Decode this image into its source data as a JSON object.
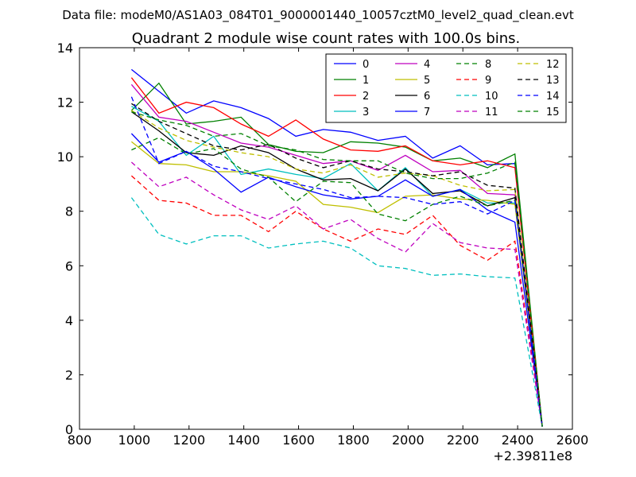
{
  "figure": {
    "suptitle": "Data file: modeM0/AS1A03_084T01_9000001440_10057cztM0_level2_quad_clean.evt"
  },
  "chart_data": {
    "type": "line",
    "title": "Quadrant 2 module wise count rates with 100.0s bins.",
    "xlabel": "",
    "ylabel": "",
    "x_offset_label": "+2.39811e8",
    "xlim": [
      800,
      2600
    ],
    "ylim": [
      0,
      14
    ],
    "x_ticks": [
      800,
      1000,
      1200,
      1400,
      1600,
      1800,
      2000,
      2200,
      2400,
      2600
    ],
    "y_ticks": [
      0,
      2,
      4,
      6,
      8,
      10,
      12,
      14
    ],
    "grid": false,
    "legend_position": "top-right",
    "legend_columns": 4,
    "x": [
      990,
      1090,
      1190,
      1290,
      1390,
      1490,
      1590,
      1690,
      1790,
      1890,
      1990,
      2090,
      2190,
      2290,
      2390,
      2490
    ],
    "series": [
      {
        "name": "0",
        "color": "#0000ff",
        "dash": "solid",
        "values": [
          13.2,
          12.4,
          11.6,
          12.05,
          11.8,
          11.4,
          10.75,
          11.0,
          10.9,
          10.6,
          10.75,
          9.95,
          10.4,
          9.7,
          9.75,
          0.1
        ]
      },
      {
        "name": "1",
        "color": "#008000",
        "dash": "solid",
        "values": [
          11.7,
          12.7,
          11.2,
          11.3,
          11.45,
          10.45,
          10.2,
          10.15,
          10.55,
          10.5,
          10.35,
          9.85,
          9.95,
          9.6,
          10.1,
          0.1
        ]
      },
      {
        "name": "2",
        "color": "#ff0000",
        "dash": "solid",
        "values": [
          12.9,
          11.6,
          12.0,
          11.8,
          11.2,
          10.75,
          11.35,
          10.65,
          10.25,
          10.2,
          10.4,
          9.85,
          9.7,
          9.85,
          9.6,
          0.1
        ]
      },
      {
        "name": "3",
        "color": "#00bfbf",
        "dash": "solid",
        "values": [
          11.85,
          11.3,
          10.05,
          10.75,
          9.35,
          9.55,
          9.35,
          9.2,
          9.75,
          8.75,
          9.6,
          8.55,
          8.8,
          8.3,
          8.3,
          0.1
        ]
      },
      {
        "name": "4",
        "color": "#bf00bf",
        "dash": "solid",
        "values": [
          12.65,
          11.45,
          11.3,
          10.9,
          10.5,
          10.35,
          10.05,
          9.75,
          9.85,
          9.5,
          10.05,
          9.45,
          9.5,
          8.65,
          8.6,
          0.1
        ]
      },
      {
        "name": "5",
        "color": "#bfbf00",
        "dash": "solid",
        "values": [
          10.55,
          9.75,
          9.7,
          9.45,
          9.45,
          9.3,
          9.1,
          8.25,
          8.15,
          7.95,
          8.55,
          8.6,
          8.45,
          8.4,
          8.25,
          0.1
        ]
      },
      {
        "name": "6",
        "color": "#000000",
        "dash": "solid",
        "values": [
          11.65,
          10.95,
          10.15,
          10.05,
          10.4,
          10.15,
          9.55,
          9.15,
          9.2,
          8.75,
          9.55,
          8.65,
          8.75,
          8.2,
          8.5,
          0.1
        ]
      },
      {
        "name": "7",
        "color": "#0000ff",
        "dash": "solid",
        "values": [
          10.85,
          9.8,
          10.2,
          9.55,
          8.7,
          9.25,
          8.9,
          8.6,
          8.45,
          8.55,
          9.15,
          8.55,
          8.8,
          8.05,
          7.6,
          0.1
        ]
      },
      {
        "name": "8",
        "color": "#008000",
        "dash": "dashed",
        "values": [
          10.25,
          10.7,
          10.1,
          10.3,
          9.55,
          9.25,
          8.35,
          9.1,
          9.05,
          7.9,
          7.65,
          8.25,
          8.55,
          8.2,
          8.4,
          0.1
        ]
      },
      {
        "name": "9",
        "color": "#ff0000",
        "dash": "dashed",
        "values": [
          9.3,
          8.4,
          8.3,
          7.85,
          7.85,
          7.25,
          8.0,
          7.35,
          6.9,
          7.35,
          7.15,
          7.85,
          6.75,
          6.2,
          6.9,
          0.1
        ]
      },
      {
        "name": "10",
        "color": "#00bfbf",
        "dash": "dashed",
        "values": [
          8.5,
          7.15,
          6.8,
          7.1,
          7.1,
          6.65,
          6.8,
          6.9,
          6.65,
          6.0,
          5.9,
          5.65,
          5.7,
          5.6,
          5.55,
          0.1
        ]
      },
      {
        "name": "11",
        "color": "#bf00bf",
        "dash": "dashed",
        "values": [
          9.8,
          8.9,
          9.25,
          8.6,
          8.05,
          7.7,
          8.2,
          7.35,
          7.7,
          7.0,
          6.5,
          7.55,
          6.85,
          6.65,
          6.6,
          0.1
        ]
      },
      {
        "name": "12",
        "color": "#bfbf00",
        "dash": "dashed",
        "values": [
          11.7,
          11.05,
          10.6,
          10.35,
          10.15,
          10.0,
          9.55,
          9.4,
          9.7,
          9.25,
          9.4,
          9.3,
          8.95,
          8.75,
          8.8,
          0.1
        ]
      },
      {
        "name": "13",
        "color": "#000000",
        "dash": "dashed",
        "values": [
          11.95,
          11.3,
          10.85,
          10.4,
          10.25,
          10.45,
          9.95,
          9.6,
          9.85,
          9.55,
          9.45,
          9.3,
          9.45,
          8.95,
          8.85,
          0.1
        ]
      },
      {
        "name": "14",
        "color": "#0000ff",
        "dash": "dashed",
        "values": [
          12.2,
          9.75,
          10.2,
          9.65,
          9.45,
          9.2,
          9.0,
          8.8,
          8.5,
          8.55,
          8.5,
          8.25,
          8.35,
          7.9,
          8.4,
          0.1
        ]
      },
      {
        "name": "15",
        "color": "#008000",
        "dash": "dashed",
        "values": [
          11.65,
          11.35,
          11.15,
          10.75,
          10.85,
          10.4,
          10.25,
          9.9,
          9.85,
          9.85,
          9.4,
          9.2,
          9.2,
          9.4,
          9.8,
          0.1
        ]
      }
    ]
  }
}
